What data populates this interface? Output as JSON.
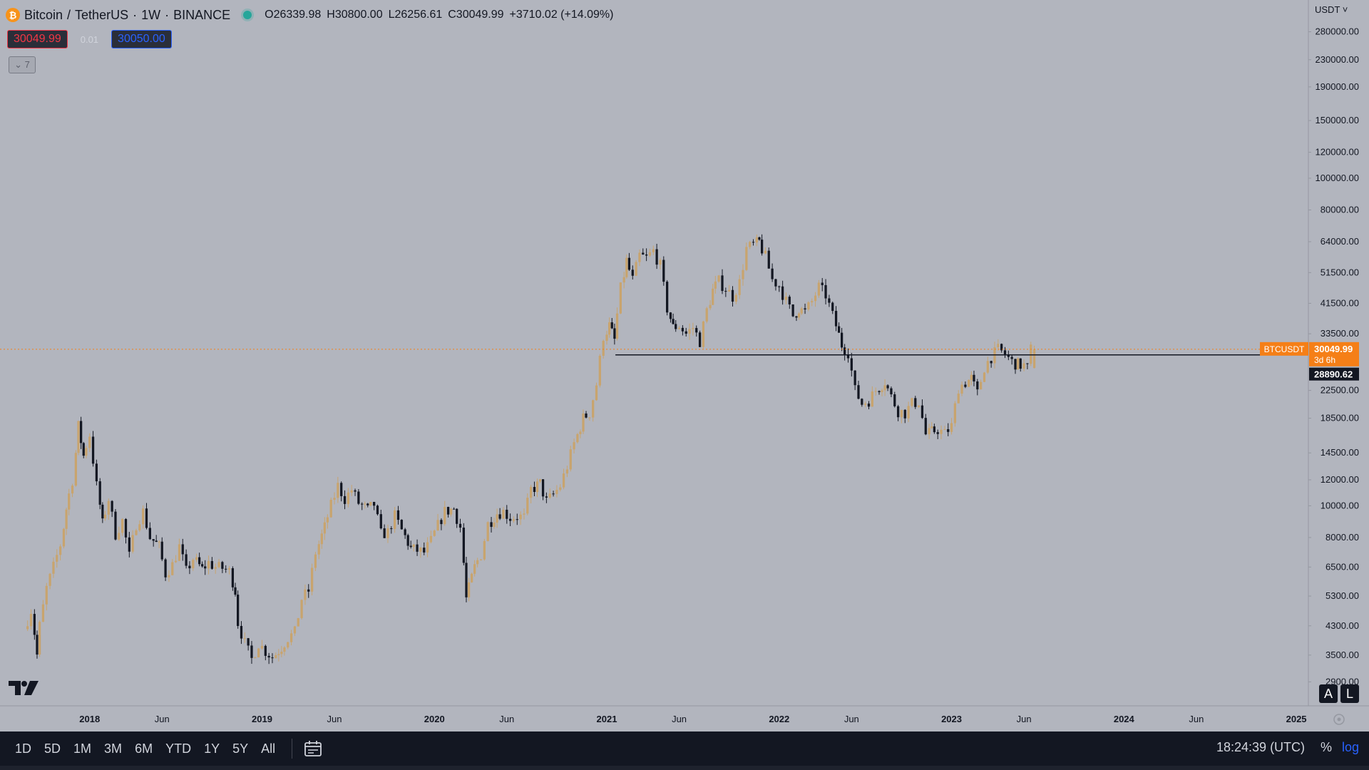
{
  "header": {
    "symbol": "Bitcoin",
    "separator": "/",
    "quote": "TetherUS",
    "interval": "1W",
    "exchange": "BINANCE",
    "logo_glyph": "₿",
    "ohlc": {
      "o_label": "O",
      "o": "26339.98",
      "h_label": "H",
      "h": "30800.00",
      "l_label": "L",
      "l": "26256.61",
      "c_label": "C",
      "c": "30049.99",
      "change": "+3710.02 (+14.09%)"
    },
    "status_color": "#26a69a"
  },
  "trade": {
    "sell_price": "30049.99",
    "spread": "0.01",
    "buy_price": "30050.00",
    "collapse_label": "⌄ 7"
  },
  "axis": {
    "currency": "USDT ˅",
    "y_labels": [
      "280000.00",
      "230000.00",
      "190000.00",
      "150000.00",
      "120000.00",
      "100000.00",
      "80000.00",
      "64000.00",
      "51500.00",
      "41500.00",
      "33500.00",
      "22500.00",
      "18500.00",
      "14500.00",
      "12000.00",
      "10000.00",
      "8000.00",
      "6500.00",
      "5300.00",
      "4300.00",
      "3500.00",
      "2900.00"
    ],
    "x_labels": [
      {
        "label": "2018",
        "t": 2018.0,
        "bold": true
      },
      {
        "label": "Jun",
        "t": 2018.42,
        "bold": false
      },
      {
        "label": "2019",
        "t": 2019.0,
        "bold": true
      },
      {
        "label": "Jun",
        "t": 2019.42,
        "bold": false
      },
      {
        "label": "2020",
        "t": 2020.0,
        "bold": true
      },
      {
        "label": "Jun",
        "t": 2020.42,
        "bold": false
      },
      {
        "label": "2021",
        "t": 2021.0,
        "bold": true
      },
      {
        "label": "Jun",
        "t": 2021.42,
        "bold": false
      },
      {
        "label": "2022",
        "t": 2022.0,
        "bold": true
      },
      {
        "label": "Jun",
        "t": 2022.42,
        "bold": false
      },
      {
        "label": "2023",
        "t": 2023.0,
        "bold": true
      },
      {
        "label": "Jun",
        "t": 2023.42,
        "bold": false
      },
      {
        "label": "2024",
        "t": 2024.0,
        "bold": true
      },
      {
        "label": "Jun",
        "t": 2024.42,
        "bold": false
      },
      {
        "label": "2025",
        "t": 2025.0,
        "bold": true
      }
    ],
    "auto_btn": "A",
    "log_btn": "L"
  },
  "price_tag": {
    "symbol": "BTCUSDT",
    "price": "30049.99",
    "countdown": "3d 6h",
    "color": "#f57f17"
  },
  "hline_tag": {
    "price": "28890.62"
  },
  "chart_data": {
    "type": "candlestick",
    "scale": "log",
    "x_range": [
      2017.48,
      2025.07
    ],
    "y_range": [
      2450,
      350000
    ],
    "grid": false,
    "up_color": "#c8a46e",
    "down_color": "#131722",
    "horizontal_line": {
      "price": 28890.62,
      "from": 2021.05,
      "to": 2024.87,
      "color": "#131722"
    },
    "last_price_line": {
      "price": 30049.99,
      "color": "#f57f17"
    },
    "path": [
      [
        2017.64,
        4200
      ],
      [
        2017.68,
        4800
      ],
      [
        2017.71,
        3500
      ],
      [
        2017.73,
        4300
      ],
      [
        2017.77,
        5600
      ],
      [
        2017.81,
        6500
      ],
      [
        2017.85,
        7600
      ],
      [
        2017.88,
        9800
      ],
      [
        2017.92,
        12000
      ],
      [
        2017.95,
        17500
      ],
      [
        2017.98,
        14200
      ],
      [
        2018.02,
        16500
      ],
      [
        2018.06,
        11500
      ],
      [
        2018.09,
        8800
      ],
      [
        2018.13,
        10500
      ],
      [
        2018.17,
        8200
      ],
      [
        2018.21,
        9000
      ],
      [
        2018.25,
        7000
      ],
      [
        2018.29,
        8800
      ],
      [
        2018.33,
        9600
      ],
      [
        2018.37,
        8000
      ],
      [
        2018.42,
        7500
      ],
      [
        2018.46,
        6200
      ],
      [
        2018.5,
        6600
      ],
      [
        2018.54,
        7500
      ],
      [
        2018.58,
        6300
      ],
      [
        2018.62,
        6900
      ],
      [
        2018.67,
        6400
      ],
      [
        2018.71,
        6700
      ],
      [
        2018.75,
        6500
      ],
      [
        2018.79,
        6450
      ],
      [
        2018.83,
        6300
      ],
      [
        2018.86,
        5500
      ],
      [
        2018.88,
        4400
      ],
      [
        2018.92,
        3800
      ],
      [
        2018.96,
        3400
      ],
      [
        2019.0,
        3800
      ],
      [
        2019.04,
        3600
      ],
      [
        2019.08,
        3450
      ],
      [
        2019.13,
        3700
      ],
      [
        2019.17,
        3950
      ],
      [
        2019.21,
        4100
      ],
      [
        2019.25,
        5200
      ],
      [
        2019.29,
        5500
      ],
      [
        2019.33,
        7200
      ],
      [
        2019.38,
        8600
      ],
      [
        2019.42,
        10000
      ],
      [
        2019.46,
        11500
      ],
      [
        2019.5,
        10500
      ],
      [
        2019.54,
        11200
      ],
      [
        2019.58,
        10200
      ],
      [
        2019.63,
        9700
      ],
      [
        2019.67,
        10100
      ],
      [
        2019.71,
        8200
      ],
      [
        2019.75,
        8300
      ],
      [
        2019.79,
        9300
      ],
      [
        2019.83,
        8400
      ],
      [
        2019.88,
        7400
      ],
      [
        2019.92,
        7300
      ],
      [
        2019.96,
        7200
      ],
      [
        2020.0,
        7800
      ],
      [
        2020.04,
        8700
      ],
      [
        2020.08,
        9600
      ],
      [
        2020.13,
        9800
      ],
      [
        2020.17,
        8600
      ],
      [
        2020.2,
        5200
      ],
      [
        2020.25,
        6500
      ],
      [
        2020.29,
        7100
      ],
      [
        2020.33,
        8800
      ],
      [
        2020.38,
        9500
      ],
      [
        2020.42,
        9600
      ],
      [
        2020.46,
        9200
      ],
      [
        2020.5,
        9300
      ],
      [
        2020.54,
        9200
      ],
      [
        2020.58,
        11200
      ],
      [
        2020.63,
        11700
      ],
      [
        2020.67,
        10300
      ],
      [
        2020.71,
        10800
      ],
      [
        2020.75,
        11500
      ],
      [
        2020.79,
        13200
      ],
      [
        2020.83,
        15500
      ],
      [
        2020.88,
        18500
      ],
      [
        2020.92,
        19200
      ],
      [
        2020.96,
        23500
      ],
      [
        2021.0,
        33000
      ],
      [
        2021.03,
        35500
      ],
      [
        2021.06,
        32000
      ],
      [
        2021.1,
        46000
      ],
      [
        2021.13,
        56000
      ],
      [
        2021.17,
        49000
      ],
      [
        2021.21,
        58000
      ],
      [
        2021.25,
        57000
      ],
      [
        2021.29,
        60000
      ],
      [
        2021.33,
        54000
      ],
      [
        2021.37,
        40000
      ],
      [
        2021.4,
        35000
      ],
      [
        2021.44,
        35500
      ],
      [
        2021.48,
        33500
      ],
      [
        2021.52,
        35000
      ],
      [
        2021.56,
        31800
      ],
      [
        2021.6,
        39500
      ],
      [
        2021.63,
        45500
      ],
      [
        2021.67,
        48500
      ],
      [
        2021.71,
        46000
      ],
      [
        2021.75,
        43500
      ],
      [
        2021.79,
        48000
      ],
      [
        2021.83,
        61000
      ],
      [
        2021.87,
        62500
      ],
      [
        2021.9,
        64000
      ],
      [
        2021.94,
        57500
      ],
      [
        2021.98,
        49000
      ],
      [
        2022.02,
        47000
      ],
      [
        2022.06,
        42000
      ],
      [
        2022.1,
        38000
      ],
      [
        2022.13,
        40000
      ],
      [
        2022.17,
        39000
      ],
      [
        2022.21,
        42000
      ],
      [
        2022.25,
        46500
      ],
      [
        2022.29,
        44000
      ],
      [
        2022.33,
        38000
      ],
      [
        2022.38,
        31000
      ],
      [
        2022.42,
        29500
      ],
      [
        2022.46,
        22500
      ],
      [
        2022.5,
        20500
      ],
      [
        2022.54,
        21000
      ],
      [
        2022.58,
        22500
      ],
      [
        2022.63,
        24000
      ],
      [
        2022.67,
        21500
      ],
      [
        2022.71,
        19500
      ],
      [
        2022.75,
        19200
      ],
      [
        2022.79,
        20500
      ],
      [
        2022.83,
        20800
      ],
      [
        2022.87,
        16500
      ],
      [
        2022.9,
        16800
      ],
      [
        2022.94,
        17100
      ],
      [
        2022.98,
        16600
      ],
      [
        2023.02,
        17500
      ],
      [
        2023.06,
        23000
      ],
      [
        2023.1,
        23800
      ],
      [
        2023.13,
        24500
      ],
      [
        2023.17,
        22000
      ],
      [
        2023.21,
        26500
      ],
      [
        2023.25,
        28500
      ],
      [
        2023.29,
        30000
      ],
      [
        2023.33,
        29000
      ],
      [
        2023.37,
        27500
      ],
      [
        2023.4,
        27000
      ],
      [
        2023.44,
        26800
      ],
      [
        2023.46,
        26300
      ],
      [
        2023.48,
        30050
      ]
    ]
  },
  "bottom_bar": {
    "ranges": [
      "1D",
      "5D",
      "1M",
      "3M",
      "6M",
      "YTD",
      "1Y",
      "5Y",
      "All"
    ],
    "clock": "18:24:39 (UTC)",
    "percent": "%",
    "log": "log"
  }
}
